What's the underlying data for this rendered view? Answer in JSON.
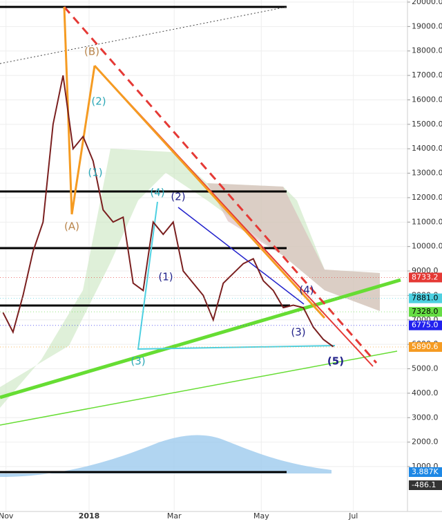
{
  "chart_data": {
    "type": "line",
    "categories": [
      null,
      null,
      null,
      null,
      null,
      null,
      null,
      null,
      null,
      null,
      null,
      null,
      null,
      null,
      null,
      null,
      null,
      null,
      null,
      null,
      null,
      null,
      null,
      null,
      null,
      null,
      null,
      null,
      null,
      null,
      null,
      null,
      null,
      null
    ],
    "series": [
      {
        "color": "#7a1f1f",
        "values": [
          7300,
          6500,
          8000,
          9800,
          11000,
          15000,
          17000,
          14000,
          14500,
          13500,
          11500,
          11000,
          11200,
          8500,
          8200,
          11000,
          10500,
          11000,
          9000,
          8500,
          8000,
          7000,
          8500,
          8900,
          9300,
          9500,
          8600,
          8200,
          7500,
          7600,
          7500,
          6700,
          6200,
          5900
        ]
      }
    ],
    "xlim": [
      -0.3,
      40.4
    ],
    "xticks": [
      {
        "value": 0.3,
        "label": "Nov"
      },
      {
        "value": 8.6,
        "label": "2018"
      },
      {
        "value": 17.1,
        "label": "Mar"
      },
      {
        "value": 25.8,
        "label": "May"
      },
      {
        "value": 35,
        "label": "Jul"
      }
    ],
    "ylim": [
      -838,
      20085
    ],
    "yticks": [
      {
        "value": 1000,
        "label": "1000.0"
      },
      {
        "value": 2000,
        "label": "2000.0"
      },
      {
        "value": 3000,
        "label": "3000.0"
      },
      {
        "value": 4000,
        "label": "4000.0"
      },
      {
        "value": 5000,
        "label": "5000.0"
      },
      {
        "value": 6000,
        "label": "6000.0"
      },
      {
        "value": 7000,
        "label": "7000.0"
      },
      {
        "value": 8000,
        "label": "8000.0"
      },
      {
        "value": 9000,
        "label": "9000.0"
      },
      {
        "value": 10000,
        "label": "10000.0"
      },
      {
        "value": 11000,
        "label": "11000.0"
      },
      {
        "value": 12000,
        "label": "12000.0"
      },
      {
        "value": 13000,
        "label": "13000.0"
      },
      {
        "value": 14000,
        "label": "14000.0"
      },
      {
        "value": 15000,
        "label": "15000.0"
      },
      {
        "value": 16000,
        "label": "16000.0"
      },
      {
        "value": 17000,
        "label": "17000.0"
      },
      {
        "value": 18000,
        "label": "18000.0"
      },
      {
        "value": 19000,
        "label": "19000.0"
      },
      {
        "value": 20000,
        "label": "20000.0"
      }
    ],
    "grid": true,
    "price_tags": [
      {
        "value": 8733.2,
        "label": "8733.2",
        "color": "#e53935"
      },
      {
        "value": 7881.0,
        "label": "7881.0",
        "color": "#4dd0e1"
      },
      {
        "value": 7328.0,
        "label": "7328.0",
        "color": "#66dd44"
      },
      {
        "value": 6775.0,
        "label": "6775.0",
        "color": "#2222ee"
      },
      {
        "value": 5890.6,
        "label": "5890.6",
        "color": "#f59b22"
      }
    ],
    "indicator_labels": [
      "3.887K",
      "-486.1"
    ],
    "annotations": [
      "(B)",
      "(A)",
      "(2)",
      "(1)",
      "(4)",
      "(2)",
      "(1)",
      "(3)",
      "(4)",
      "(3)",
      "(5)"
    ]
  }
}
